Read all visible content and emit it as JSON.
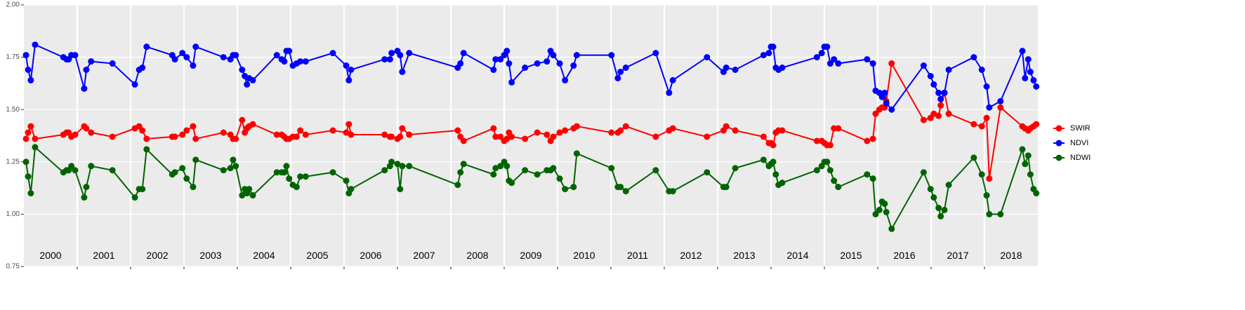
{
  "chart_data": {
    "type": "line",
    "x": [
      2000.04,
      2000.08,
      2000.13,
      2000.21,
      2000.74,
      2000.8,
      2000.84,
      2000.89,
      2000.96,
      2001.13,
      2001.17,
      2001.26,
      2001.66,
      2002.08,
      2002.16,
      2002.22,
      2002.3,
      2002.78,
      2002.83,
      2002.97,
      2003.05,
      2003.17,
      2003.22,
      2003.74,
      2003.87,
      2003.92,
      2003.97,
      2004.09,
      2004.14,
      2004.18,
      2004.22,
      2004.29,
      2004.74,
      2004.83,
      2004.88,
      2004.92,
      2004.97,
      2005.04,
      2005.11,
      2005.18,
      2005.28,
      2005.79,
      2006.04,
      2006.09,
      2006.13,
      2006.76,
      2006.86,
      2006.89,
      2007.0,
      2007.05,
      2007.09,
      2007.22,
      2008.13,
      2008.18,
      2008.24,
      2008.8,
      2008.84,
      2008.93,
      2009.0,
      2009.05,
      2009.09,
      2009.14,
      2009.39,
      2009.62,
      2009.8,
      2009.87,
      2009.92,
      2010.04,
      2010.14,
      2010.3,
      2010.36,
      2011.01,
      2011.13,
      2011.18,
      2011.28,
      2011.84,
      2012.09,
      2012.16,
      2012.8,
      2013.11,
      2013.16,
      2013.33,
      2013.86,
      2013.96,
      2014.0,
      2014.04,
      2014.09,
      2014.14,
      2014.21,
      2014.86,
      2014.95,
      2015.0,
      2015.05,
      2015.11,
      2015.18,
      2015.26,
      2015.8,
      2015.91,
      2015.96,
      2016.03,
      2016.08,
      2016.13,
      2016.16,
      2016.26,
      2016.86,
      2016.99,
      2017.05,
      2017.14,
      2017.18,
      2017.25,
      2017.33,
      2017.8,
      2017.95,
      2018.04,
      2018.09,
      2018.3,
      2018.71,
      2018.76,
      2018.82,
      2018.86,
      2018.92,
      2018.97
    ],
    "series": [
      {
        "name": "SWIR",
        "color": "#ff0000",
        "values": [
          1.36,
          1.39,
          1.42,
          1.36,
          1.38,
          1.39,
          1.39,
          1.37,
          1.38,
          1.42,
          1.41,
          1.39,
          1.37,
          1.41,
          1.42,
          1.4,
          1.36,
          1.37,
          1.37,
          1.38,
          1.4,
          1.42,
          1.36,
          1.39,
          1.38,
          1.36,
          1.36,
          1.45,
          1.39,
          1.41,
          1.42,
          1.43,
          1.38,
          1.38,
          1.37,
          1.36,
          1.36,
          1.37,
          1.37,
          1.4,
          1.38,
          1.4,
          1.39,
          1.43,
          1.38,
          1.38,
          1.37,
          1.37,
          1.36,
          1.37,
          1.41,
          1.38,
          1.4,
          1.37,
          1.35,
          1.41,
          1.37,
          1.37,
          1.35,
          1.36,
          1.39,
          1.37,
          1.36,
          1.39,
          1.38,
          1.35,
          1.37,
          1.39,
          1.4,
          1.41,
          1.42,
          1.39,
          1.39,
          1.4,
          1.42,
          1.37,
          1.4,
          1.41,
          1.37,
          1.4,
          1.42,
          1.4,
          1.37,
          1.34,
          1.34,
          1.33,
          1.39,
          1.4,
          1.4,
          1.35,
          1.35,
          1.34,
          1.33,
          1.33,
          1.41,
          1.41,
          1.35,
          1.36,
          1.48,
          1.5,
          1.51,
          1.51,
          1.54,
          1.72,
          1.45,
          1.46,
          1.48,
          1.47,
          1.52,
          1.58,
          1.48,
          1.43,
          1.42,
          1.46,
          1.17,
          1.51,
          1.42,
          1.41,
          1.4,
          1.41,
          1.42,
          1.43
        ]
      },
      {
        "name": "NDVI",
        "color": "#0000ff",
        "values": [
          1.76,
          1.69,
          1.64,
          1.81,
          1.75,
          1.74,
          1.74,
          1.76,
          1.76,
          1.6,
          1.69,
          1.73,
          1.72,
          1.62,
          1.69,
          1.7,
          1.8,
          1.76,
          1.74,
          1.77,
          1.75,
          1.71,
          1.8,
          1.75,
          1.74,
          1.76,
          1.76,
          1.69,
          1.66,
          1.62,
          1.65,
          1.64,
          1.76,
          1.74,
          1.73,
          1.78,
          1.78,
          1.71,
          1.72,
          1.73,
          1.73,
          1.77,
          1.71,
          1.64,
          1.69,
          1.74,
          1.74,
          1.77,
          1.78,
          1.76,
          1.68,
          1.77,
          1.7,
          1.72,
          1.77,
          1.69,
          1.74,
          1.74,
          1.76,
          1.78,
          1.72,
          1.63,
          1.7,
          1.72,
          1.73,
          1.78,
          1.76,
          1.72,
          1.64,
          1.71,
          1.76,
          1.76,
          1.65,
          1.68,
          1.7,
          1.77,
          1.58,
          1.64,
          1.75,
          1.68,
          1.7,
          1.69,
          1.76,
          1.77,
          1.8,
          1.8,
          1.7,
          1.69,
          1.7,
          1.75,
          1.77,
          1.8,
          1.8,
          1.72,
          1.74,
          1.72,
          1.74,
          1.72,
          1.59,
          1.58,
          1.56,
          1.58,
          1.53,
          1.5,
          1.71,
          1.66,
          1.62,
          1.58,
          1.55,
          1.58,
          1.69,
          1.75,
          1.69,
          1.61,
          1.51,
          1.54,
          1.78,
          1.65,
          1.74,
          1.68,
          1.64,
          1.61
        ]
      },
      {
        "name": "NDWI",
        "color": "#006400",
        "values": [
          1.25,
          1.18,
          1.1,
          1.32,
          1.2,
          1.21,
          1.21,
          1.23,
          1.21,
          1.08,
          1.13,
          1.23,
          1.21,
          1.08,
          1.12,
          1.12,
          1.31,
          1.19,
          1.2,
          1.22,
          1.17,
          1.13,
          1.26,
          1.21,
          1.22,
          1.26,
          1.23,
          1.09,
          1.12,
          1.1,
          1.12,
          1.09,
          1.2,
          1.2,
          1.2,
          1.23,
          1.17,
          1.14,
          1.13,
          1.18,
          1.18,
          1.2,
          1.16,
          1.1,
          1.12,
          1.21,
          1.23,
          1.25,
          1.24,
          1.12,
          1.23,
          1.23,
          1.14,
          1.2,
          1.24,
          1.19,
          1.22,
          1.23,
          1.25,
          1.23,
          1.16,
          1.15,
          1.21,
          1.19,
          1.21,
          1.21,
          1.22,
          1.17,
          1.12,
          1.13,
          1.29,
          1.22,
          1.13,
          1.13,
          1.11,
          1.21,
          1.11,
          1.11,
          1.2,
          1.13,
          1.13,
          1.22,
          1.26,
          1.23,
          1.24,
          1.25,
          1.19,
          1.14,
          1.15,
          1.21,
          1.23,
          1.25,
          1.25,
          1.21,
          1.16,
          1.13,
          1.19,
          1.17,
          1.0,
          1.02,
          1.06,
          1.05,
          1.01,
          0.93,
          1.2,
          1.12,
          1.08,
          1.03,
          0.99,
          1.02,
          1.14,
          1.27,
          1.19,
          1.09,
          1.0,
          1.0,
          1.31,
          1.24,
          1.28,
          1.19,
          1.12,
          1.1
        ]
      }
    ],
    "xlim": [
      2000,
      2019
    ],
    "xticks": [
      2001,
      2002,
      2003,
      2004,
      2005,
      2006,
      2007,
      2008,
      2009,
      2010,
      2011,
      2012,
      2013,
      2014,
      2015,
      2016,
      2017,
      2018
    ],
    "ylim": [
      0.75,
      2.0
    ],
    "yticks": [
      0.75,
      {
        "value": 1.0,
        "label": "1.00"
      },
      1.25,
      {
        "value": 1.5,
        "label": "1.50"
      },
      1.75,
      {
        "value": 2.0,
        "label": "2.00"
      }
    ],
    "annotations": [
      {
        "text": "2000",
        "x": 2000.5,
        "y": 0.8
      },
      {
        "text": "2001",
        "x": 2001.5,
        "y": 0.8
      },
      {
        "text": "2002",
        "x": 2002.5,
        "y": 0.8
      },
      {
        "text": "2003",
        "x": 2003.5,
        "y": 0.8
      },
      {
        "text": "2004",
        "x": 2004.5,
        "y": 0.8
      },
      {
        "text": "2005",
        "x": 2005.5,
        "y": 0.8
      },
      {
        "text": "2006",
        "x": 2006.5,
        "y": 0.8
      },
      {
        "text": "2007",
        "x": 2007.5,
        "y": 0.8
      },
      {
        "text": "2008",
        "x": 2008.5,
        "y": 0.8
      },
      {
        "text": "2009",
        "x": 2009.5,
        "y": 0.8
      },
      {
        "text": "2010",
        "x": 2010.5,
        "y": 0.8
      },
      {
        "text": "2011",
        "x": 2011.5,
        "y": 0.8
      },
      {
        "text": "2012",
        "x": 2012.5,
        "y": 0.8
      },
      {
        "text": "2013",
        "x": 2013.5,
        "y": 0.8
      },
      {
        "text": "2014",
        "x": 2014.5,
        "y": 0.8
      },
      {
        "text": "2015",
        "x": 2015.5,
        "y": 0.8
      },
      {
        "text": "2016",
        "x": 2016.5,
        "y": 0.8
      },
      {
        "text": "2017",
        "x": 2017.5,
        "y": 0.8
      },
      {
        "text": "2018",
        "x": 2018.5,
        "y": 0.8
      }
    ],
    "grid": true,
    "legend": "right"
  }
}
